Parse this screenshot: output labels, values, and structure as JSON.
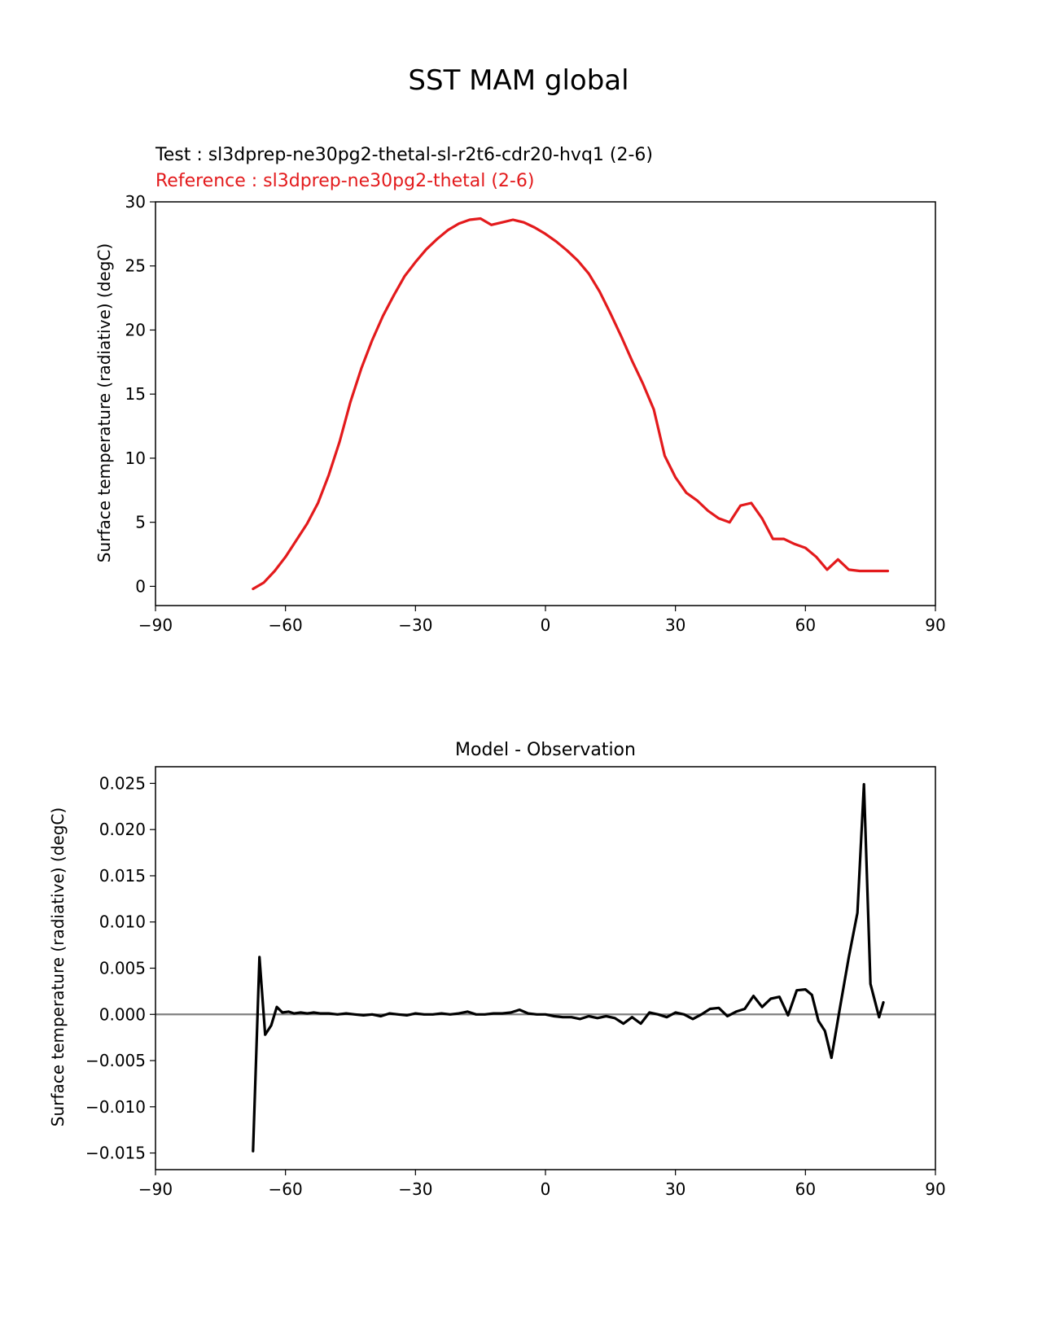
{
  "figure": {
    "suptitle": "SST MAM global"
  },
  "chart_data": [
    {
      "type": "line",
      "panel": "top",
      "title_test": "Test : sl3dprep-ne30pg2-thetal-sl-r2t6-cdr20-hvq1 (2-6)",
      "title_reference": "Reference : sl3dprep-ne30pg2-thetal (2-6)",
      "ylabel": "Surface temperature (radiative) (degC)",
      "xlabel": "",
      "xlim": [
        -90,
        90
      ],
      "ylim": [
        -1.5,
        30
      ],
      "xticks": [
        -90,
        -60,
        -30,
        0,
        30,
        60,
        90
      ],
      "xtick_labels": [
        "−90",
        "−60",
        "−30",
        "0",
        "30",
        "60",
        "90"
      ],
      "yticks": [
        0,
        5,
        10,
        15,
        20,
        25,
        30
      ],
      "ytick_labels": [
        "0",
        "5",
        "10",
        "15",
        "20",
        "25",
        "30"
      ],
      "colors": {
        "reference": "#e31a1c",
        "test": "#000000",
        "axes": "#000000"
      },
      "series": [
        {
          "name": "Reference",
          "x": [
            -67.5,
            -65,
            -62.5,
            -60,
            -57.5,
            -55,
            -52.5,
            -50,
            -47.5,
            -45,
            -42.5,
            -40,
            -37.5,
            -35,
            -32.5,
            -30,
            -27.5,
            -25,
            -22.5,
            -20,
            -17.5,
            -15,
            -12.5,
            -10,
            -7.5,
            -5,
            -2.5,
            0,
            2.5,
            5,
            7.5,
            10,
            12.5,
            15,
            17.5,
            20,
            22.5,
            25,
            27.5,
            30,
            32.5,
            35,
            37.5,
            40,
            42.5,
            45,
            47.5,
            50,
            52.5,
            55,
            57.5,
            60,
            62.5,
            65,
            67.5,
            70,
            72.5,
            75,
            77.5,
            79
          ],
          "values": [
            -0.2,
            0.3,
            1.2,
            2.3,
            3.6,
            4.9,
            6.5,
            8.7,
            11.3,
            14.4,
            17.0,
            19.2,
            21.1,
            22.7,
            24.2,
            25.3,
            26.3,
            27.1,
            27.8,
            28.3,
            28.6,
            28.7,
            28.2,
            28.4,
            28.6,
            28.4,
            28.0,
            27.5,
            26.9,
            26.2,
            25.4,
            24.4,
            23.0,
            21.3,
            19.5,
            17.6,
            15.8,
            13.8,
            10.2,
            8.5,
            7.3,
            6.7,
            5.9,
            5.3,
            5.0,
            6.3,
            6.5,
            5.3,
            3.7,
            3.7,
            3.3,
            3.0,
            2.3,
            1.3,
            2.1,
            1.3,
            1.2,
            1.2,
            1.2,
            1.2
          ]
        }
      ]
    },
    {
      "type": "line",
      "panel": "bottom",
      "title": "Model - Observation",
      "ylabel": "Surface temperature (radiative) (degC)",
      "xlabel": "",
      "xlim": [
        -90,
        90
      ],
      "ylim": [
        -0.0168,
        0.0268
      ],
      "xticks": [
        -90,
        -60,
        -30,
        0,
        30,
        60,
        90
      ],
      "xtick_labels": [
        "−90",
        "−60",
        "−30",
        "0",
        "30",
        "60",
        "90"
      ],
      "yticks": [
        -0.015,
        -0.01,
        -0.005,
        0.0,
        0.005,
        0.01,
        0.015,
        0.02,
        0.025
      ],
      "ytick_labels": [
        "−0.015",
        "−0.010",
        "−0.005",
        "0.000",
        "0.005",
        "0.010",
        "0.015",
        "0.020",
        "0.025"
      ],
      "zero_line": true,
      "colors": {
        "line": "#000000",
        "zero": "#808080",
        "axes": "#000000"
      },
      "series": [
        {
          "name": "Model - Observation",
          "x": [
            -67.5,
            -66,
            -64.7,
            -63.3,
            -62,
            -60.7,
            -59.3,
            -58,
            -56.5,
            -55,
            -53.5,
            -52,
            -50,
            -48,
            -46,
            -44,
            -42,
            -40,
            -38,
            -36,
            -34,
            -32,
            -30,
            -28,
            -26,
            -24,
            -22,
            -20,
            -18,
            -16,
            -14,
            -12,
            -10,
            -8,
            -6,
            -4,
            -2,
            0,
            2,
            4,
            6,
            8,
            10,
            12,
            14,
            16,
            18,
            20,
            22,
            24,
            26,
            28,
            30,
            32,
            34,
            36,
            38,
            40,
            42,
            44,
            46,
            48,
            50,
            52,
            54,
            56,
            58,
            60,
            61.5,
            63,
            64.5,
            66,
            68,
            70,
            72,
            73.5,
            75,
            77,
            78
          ],
          "values": [
            -0.0148,
            0.0062,
            -0.0022,
            -0.0012,
            0.0008,
            0.0002,
            0.0003,
            0.0001,
            0.0002,
            0.0001,
            0.0002,
            0.0001,
            0.0001,
            0.0,
            0.0001,
            0.0,
            -0.0001,
            0.0,
            -0.0002,
            0.0001,
            0.0,
            -0.0001,
            0.0001,
            0.0,
            0.0,
            0.0001,
            0.0,
            0.0001,
            0.0003,
            0.0,
            0.0,
            0.0001,
            0.0001,
            0.0002,
            0.0005,
            0.0001,
            0.0,
            0.0,
            -0.0002,
            -0.0003,
            -0.0003,
            -0.0005,
            -0.0002,
            -0.0004,
            -0.0002,
            -0.0004,
            -0.001,
            -0.0003,
            -0.001,
            0.0002,
            0.0,
            -0.0003,
            0.0002,
            0.0,
            -0.0005,
            0.0,
            0.0006,
            0.0007,
            -0.0002,
            0.0003,
            0.0006,
            0.002,
            0.0008,
            0.0017,
            0.0019,
            -0.0001,
            0.0026,
            0.0027,
            0.0021,
            -0.0007,
            -0.0018,
            -0.0047,
            0.0008,
            0.0062,
            0.011,
            0.0249,
            0.0033,
            -0.0003,
            0.0013
          ]
        }
      ]
    }
  ]
}
